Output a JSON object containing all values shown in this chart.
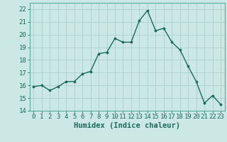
{
  "x": [
    0,
    1,
    2,
    3,
    4,
    5,
    6,
    7,
    8,
    9,
    10,
    11,
    12,
    13,
    14,
    15,
    16,
    17,
    18,
    19,
    20,
    21,
    22,
    23
  ],
  "y": [
    15.9,
    16.0,
    15.6,
    15.9,
    16.3,
    16.3,
    16.9,
    17.1,
    18.5,
    18.6,
    19.7,
    19.4,
    19.4,
    21.1,
    21.9,
    20.3,
    20.5,
    19.4,
    18.8,
    17.5,
    16.3,
    14.6,
    15.2,
    14.5
  ],
  "line_color": "#1a6b5a",
  "marker": "o",
  "marker_size": 2.2,
  "bg_color": "#cce8e4",
  "grid_color": "#aacfcb",
  "xlabel": "Humidex (Indice chaleur)",
  "ylim": [
    14,
    22.5
  ],
  "yticks": [
    14,
    15,
    16,
    17,
    18,
    19,
    20,
    21,
    22
  ],
  "xticks": [
    0,
    1,
    2,
    3,
    4,
    5,
    6,
    7,
    8,
    9,
    10,
    11,
    12,
    13,
    14,
    15,
    16,
    17,
    18,
    19,
    20,
    21,
    22,
    23
  ],
  "xtick_labels": [
    "0",
    "1",
    "2",
    "3",
    "4",
    "5",
    "6",
    "7",
    "8",
    "9",
    "10",
    "11",
    "12",
    "13",
    "14",
    "15",
    "16",
    "17",
    "18",
    "19",
    "20",
    "21",
    "22",
    "23"
  ],
  "xlabel_fontsize": 7.5,
  "tick_fontsize": 6.5,
  "line_width": 1.0,
  "xlim_left": -0.5,
  "xlim_right": 23.5
}
